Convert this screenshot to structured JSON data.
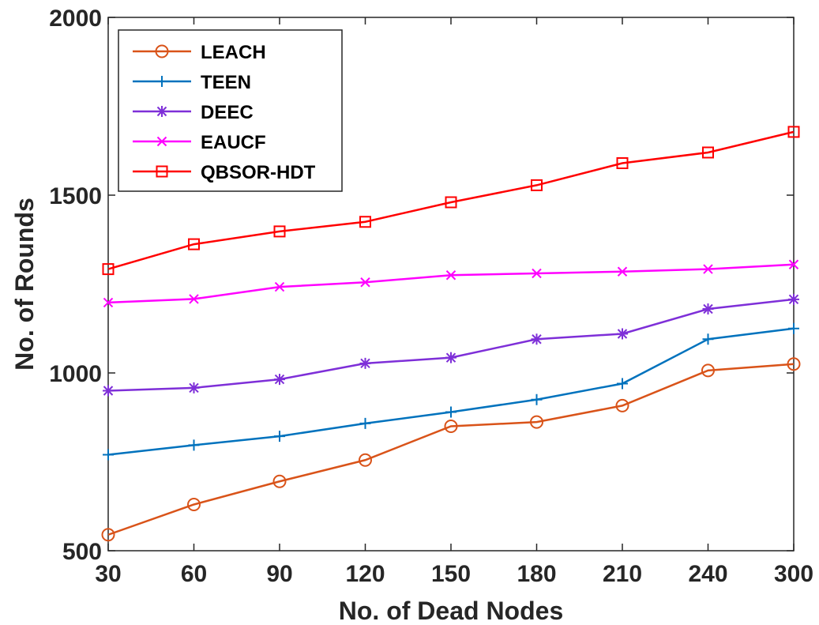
{
  "chart_data": {
    "type": "line",
    "xlabel": "No. of Dead Nodes",
    "ylabel": "No. of Rounds",
    "categories": [
      "30",
      "60",
      "90",
      "120",
      "150",
      "180",
      "210",
      "240",
      "300"
    ],
    "ylim": [
      500,
      2000
    ],
    "yticks": [
      "500",
      "1000",
      "1500",
      "2000"
    ],
    "grid": false,
    "legend_position": "top-left",
    "series": [
      {
        "name": "LEACH",
        "color": "#D95319",
        "marker": "circle",
        "values": [
          545,
          630,
          695,
          755,
          850,
          862,
          908,
          1007,
          1025
        ]
      },
      {
        "name": "TEEN",
        "color": "#0072BD",
        "marker": "plus",
        "values": [
          770,
          797,
          822,
          858,
          890,
          925,
          970,
          1095,
          1125
        ]
      },
      {
        "name": "DEEC",
        "color": "#7E2FD8",
        "marker": "asterisk",
        "values": [
          950,
          958,
          982,
          1027,
          1043,
          1095,
          1110,
          1180,
          1207
        ]
      },
      {
        "name": "EAUCF",
        "color": "#FF00FF",
        "marker": "x",
        "values": [
          1198,
          1208,
          1242,
          1255,
          1275,
          1280,
          1285,
          1292,
          1305
        ]
      },
      {
        "name": "QBSOR-HDT",
        "color": "#FF0000",
        "marker": "square",
        "values": [
          1292,
          1362,
          1398,
          1425,
          1480,
          1528,
          1590,
          1620,
          1678
        ]
      }
    ]
  }
}
